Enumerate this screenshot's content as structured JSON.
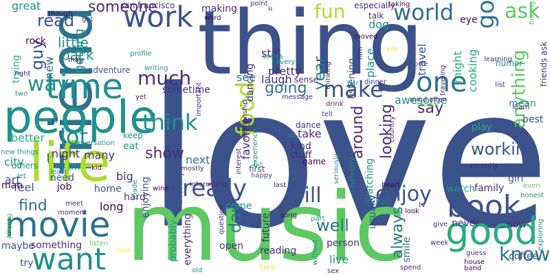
{
  "background": "#ffffff",
  "palette": [
    "#3b528b",
    "#21918c",
    "#5ec962",
    "#addc30",
    "#2c728e",
    "#440154",
    "#28ae80",
    "#472d7b",
    "#fde725"
  ],
  "words": [
    {
      "text": "love",
      "color": "#3b528b"
    },
    {
      "text": "music",
      "color": "#5ec962"
    },
    {
      "text": "thing",
      "color": "#3b528b"
    },
    {
      "text": "friend",
      "color": "#2c728e"
    },
    {
      "text": "people",
      "color": "#21918c"
    },
    {
      "text": "life",
      "color": "#addc30"
    },
    {
      "text": "movie",
      "color": "#2c728e"
    },
    {
      "text": "time",
      "color": "#21918c"
    },
    {
      "text": "work",
      "color": "#3b528b"
    },
    {
      "text": "good",
      "color": "#28ae80"
    },
    {
      "text": "book",
      "color": "#3b528b"
    },
    {
      "text": "want",
      "color": "#21918c"
    },
    {
      "text": "food",
      "color": "#addc30"
    },
    {
      "text": "really",
      "color": "#3b528b"
    },
    {
      "text": "one",
      "color": "#2c728e"
    },
    {
      "text": "make",
      "color": "#3b528b"
    },
    {
      "text": "world",
      "color": "#2c728e"
    },
    {
      "text": "think",
      "color": "#21918c"
    },
    {
      "text": "fun",
      "color": "#addc30"
    },
    {
      "text": "go",
      "color": "#2c728e"
    },
    {
      "text": "ask",
      "color": "#5ec962"
    },
    {
      "text": "enjoy",
      "color": "#3b528b"
    },
    {
      "text": "will",
      "color": "#3b528b"
    },
    {
      "text": "know",
      "color": "#2c728e"
    },
    {
      "text": "lot",
      "color": "#21918c"
    },
    {
      "text": "way",
      "color": "#21918c"
    },
    {
      "text": "much",
      "color": "#472d7b"
    },
    {
      "text": "read",
      "color": "#3b528b"
    },
    {
      "text": "someone",
      "color": "#472d7b"
    },
    {
      "text": "anything",
      "color": "#5ec962"
    },
    {
      "text": "going",
      "color": "#2c728e"
    },
    {
      "text": "year",
      "color": "#2c728e"
    },
    {
      "text": "day",
      "color": "#2c728e"
    },
    {
      "text": "show",
      "color": "#472d7b"
    },
    {
      "text": "well",
      "color": "#2c728e"
    },
    {
      "text": "looking",
      "color": "#472d7b"
    },
    {
      "text": "working",
      "color": "#3b528b"
    },
    {
      "text": "around",
      "color": "#472d7b"
    },
    {
      "text": "always",
      "color": "#2c728e"
    },
    {
      "text": "find",
      "color": "#2c728e"
    },
    {
      "text": "say",
      "color": "#472d7b"
    },
    {
      "text": "guy",
      "color": "#3b528b"
    },
    {
      "text": "little",
      "color": "#21918c"
    },
    {
      "text": "back",
      "color": "#21918c"
    },
    {
      "text": "getting",
      "color": "#21918c"
    },
    {
      "text": "next",
      "color": "#2c728e"
    },
    {
      "text": "sometime",
      "color": "#472d7b"
    },
    {
      "text": "favorite",
      "color": "#472d7b"
    },
    {
      "text": "see",
      "color": "#2c728e"
    },
    {
      "text": "laugh",
      "color": "#472d7b"
    },
    {
      "text": "pretty",
      "color": "#472d7b"
    },
    {
      "text": "dog",
      "color": "#21918c"
    },
    {
      "text": "eye",
      "color": "#440154"
    },
    {
      "text": "cooking",
      "color": "#28ae80"
    },
    {
      "text": "might",
      "color": "#28ae80"
    },
    {
      "text": "travel",
      "color": "#3b528b"
    },
    {
      "text": "place",
      "color": "#21918c"
    },
    {
      "text": "listening",
      "color": "#3b528b"
    },
    {
      "text": "still",
      "color": "#472d7b"
    },
    {
      "text": "dancing",
      "color": "#472d7b"
    },
    {
      "text": "awesome",
      "color": "#21918c"
    },
    {
      "text": "mean",
      "color": "#21918c"
    },
    {
      "text": "best",
      "color": "#3b528b"
    },
    {
      "text": "play",
      "color": "#28ae80"
    },
    {
      "text": "girl",
      "color": "#3b528b"
    },
    {
      "text": "family",
      "color": "#472d7b"
    },
    {
      "text": "watch",
      "color": "#21918c"
    },
    {
      "text": "watching",
      "color": "#21918c"
    },
    {
      "text": "living",
      "color": "#2c728e"
    },
    {
      "text": "come",
      "color": "#21918c"
    },
    {
      "text": "never",
      "color": "#472d7b"
    },
    {
      "text": "now",
      "color": "#472d7b"
    },
    {
      "text": "coffee",
      "color": "#3b528b"
    },
    {
      "text": "person",
      "color": "#472d7b"
    },
    {
      "text": "live",
      "color": "#21918c"
    },
    {
      "text": "usually",
      "color": "#3b528b"
    },
    {
      "text": "smile",
      "color": "#2c728e"
    },
    {
      "text": "open",
      "color": "#472d7b"
    },
    {
      "text": "future",
      "color": "#472d7b"
    },
    {
      "text": "reading",
      "color": "#472d7b"
    },
    {
      "text": "something",
      "color": "#472d7b"
    },
    {
      "text": "try",
      "color": "#3b528b"
    },
    {
      "text": "long",
      "color": "#440154"
    },
    {
      "text": "home",
      "color": "#3b528b"
    },
    {
      "text": "hard",
      "color": "#472d7b"
    },
    {
      "text": "job",
      "color": "#440154"
    },
    {
      "text": "feel",
      "color": "#3b528b"
    },
    {
      "text": "need",
      "color": "#3b528b"
    },
    {
      "text": "let",
      "color": "#21918c"
    },
    {
      "text": "big",
      "color": "#472d7b"
    },
    {
      "text": "eat",
      "color": "#21918c"
    },
    {
      "text": "keep",
      "color": "#21918c"
    },
    {
      "text": "better",
      "color": "#28ae80"
    },
    {
      "text": "night",
      "color": "#472d7b"
    },
    {
      "text": "many",
      "color": "#472d7b"
    },
    {
      "text": "city",
      "color": "#21918c"
    },
    {
      "text": "art",
      "color": "#3b528b"
    },
    {
      "text": "man",
      "color": "#440154"
    },
    {
      "text": "great",
      "color": "#21918c"
    },
    {
      "text": "rock",
      "color": "#440154"
    },
    {
      "text": "trying",
      "color": "#28ae80"
    },
    {
      "text": "new",
      "color": "#2c728e"
    },
    {
      "text": "right",
      "color": "#472d7b"
    },
    {
      "text": "two",
      "color": "#21918c"
    },
    {
      "text": "adventure",
      "color": "#3b528b"
    },
    {
      "text": "making",
      "color": "#472d7b"
    },
    {
      "text": "take",
      "color": "#472d7b"
    },
    {
      "text": "kind",
      "color": "#472d7b"
    },
    {
      "text": "dance",
      "color": "#472d7b"
    },
    {
      "text": "stuff",
      "color": "#472d7b"
    },
    {
      "text": "game",
      "color": "#440154"
    },
    {
      "text": "first",
      "color": "#3b528b"
    },
    {
      "text": "im",
      "color": "#21918c"
    },
    {
      "text": "others",
      "color": "#21918c"
    },
    {
      "text": "enjoying",
      "color": "#3b528b"
    },
    {
      "text": "probably",
      "color": "#21918c"
    },
    {
      "text": "everything",
      "color": "#472d7b"
    },
    {
      "text": "actually",
      "color": "#3b528b"
    },
    {
      "text": "talk",
      "color": "#472d7b"
    },
    {
      "text": "humor",
      "color": "#21918c"
    },
    {
      "text": "friends ask",
      "color": "#472d7b"
    },
    {
      "text": "finding",
      "color": "#5ec962"
    },
    {
      "text": "traveling",
      "color": "#472d7b"
    },
    {
      "text": "learning",
      "color": "#472d7b"
    },
    {
      "text": "san francisco",
      "color": "#472d7b"
    },
    {
      "text": "especially",
      "color": "#472d7b"
    },
    {
      "text": "taking",
      "color": "#440154"
    },
    {
      "text": "yes",
      "color": "#fde725"
    },
    {
      "text": "bike",
      "color": "#3b528b"
    },
    {
      "text": "list",
      "color": "#472d7b"
    },
    {
      "text": "mind often",
      "color": "#472d7b"
    },
    {
      "text": "school",
      "color": "#5ec962"
    },
    {
      "text": "learn",
      "color": "#472d7b"
    },
    {
      "text": "country",
      "color": "#472d7b"
    },
    {
      "text": "recently",
      "color": "#472d7b"
    },
    {
      "text": "heart",
      "color": "#440154"
    },
    {
      "text": "even",
      "color": "#5ec962"
    },
    {
      "text": "honest",
      "color": "#21918c"
    },
    {
      "text": "tv",
      "color": "#3b528b"
    },
    {
      "text": "give",
      "color": "#472d7b"
    },
    {
      "text": "week",
      "color": "#472d7b"
    },
    {
      "text": "guess",
      "color": "#472d7b"
    },
    {
      "text": "house",
      "color": "#440154"
    },
    {
      "text": "band",
      "color": "#440154"
    },
    {
      "text": "exploring",
      "color": "#21918c"
    },
    {
      "text": "spend",
      "color": "#472d7b"
    },
    {
      "text": "sex",
      "color": "#472d7b"
    },
    {
      "text": "without",
      "color": "#21918c"
    },
    {
      "text": "part",
      "color": "#21918c"
    },
    {
      "text": "look",
      "color": "#440154"
    },
    {
      "text": "song",
      "color": "#440154"
    },
    {
      "text": "question",
      "color": "#472d7b"
    },
    {
      "text": "last",
      "color": "#472d7b"
    },
    {
      "text": "happy",
      "color": "#3b528b"
    },
    {
      "text": "seriously",
      "color": "#21918c"
    },
    {
      "text": "currently",
      "color": "#21918c"
    },
    {
      "text": "bit",
      "color": "#21918c"
    },
    {
      "text": "interesting",
      "color": "#472d7b"
    },
    {
      "text": "wine",
      "color": "#440154"
    },
    {
      "text": "made",
      "color": "#21918c"
    },
    {
      "text": "kid",
      "color": "#440154"
    },
    {
      "text": "mostly",
      "color": "#472d7b"
    },
    {
      "text": "least",
      "color": "#21918c"
    },
    {
      "text": "conversation",
      "color": "#21918c"
    },
    {
      "text": "sf",
      "color": "#472d7b"
    },
    {
      "text": "new things",
      "color": "#21918c"
    },
    {
      "text": "maybe",
      "color": "#3b528b"
    },
    {
      "text": "playing",
      "color": "#5ec962"
    },
    {
      "text": "meet",
      "color": "#472d7b"
    },
    {
      "text": "moment",
      "color": "#472d7b"
    },
    {
      "text": "listen",
      "color": "#5ec962"
    },
    {
      "text": "nice",
      "color": "#fde725"
    },
    {
      "text": "old",
      "color": "#21918c"
    },
    {
      "text": "type",
      "color": "#fde725"
    },
    {
      "text": "tell",
      "color": "#472d7b"
    },
    {
      "text": "drink",
      "color": "#472d7b"
    },
    {
      "text": "message",
      "color": "#472d7b"
    },
    {
      "text": "oh",
      "color": "#21918c"
    },
    {
      "text": "interest",
      "color": "#472d7b"
    },
    {
      "text": "experience",
      "color": "#21918c"
    },
    {
      "text": "sense",
      "color": "#472d7b"
    },
    {
      "text": "bar",
      "color": "#21918c"
    },
    {
      "text": "dinner",
      "color": "#472d7b"
    },
    {
      "text": "moved",
      "color": "#440154"
    },
    {
      "text": "film",
      "color": "#472d7b"
    },
    {
      "text": "thinking",
      "color": "#472d7b"
    },
    {
      "text": "every",
      "color": "#21918c"
    },
    {
      "text": "series",
      "color": "#21918c"
    },
    {
      "text": "relationship",
      "color": "#472d7b"
    },
    {
      "text": "important",
      "color": "#472d7b"
    },
    {
      "text": "writing",
      "color": "#21918c"
    },
    {
      "text": "profile",
      "color": "#21918c"
    },
    {
      "text": "word",
      "color": "#440154"
    },
    {
      "text": "point",
      "color": "#472d7b"
    },
    {
      "text": "u",
      "color": "#472d7b"
    },
    {
      "text": "though",
      "color": "#440154"
    },
    {
      "text": "got",
      "color": "#472d7b"
    },
    {
      "text": "may",
      "color": "#440154"
    },
    {
      "text": "yet",
      "color": "#472d7b"
    }
  ]
}
